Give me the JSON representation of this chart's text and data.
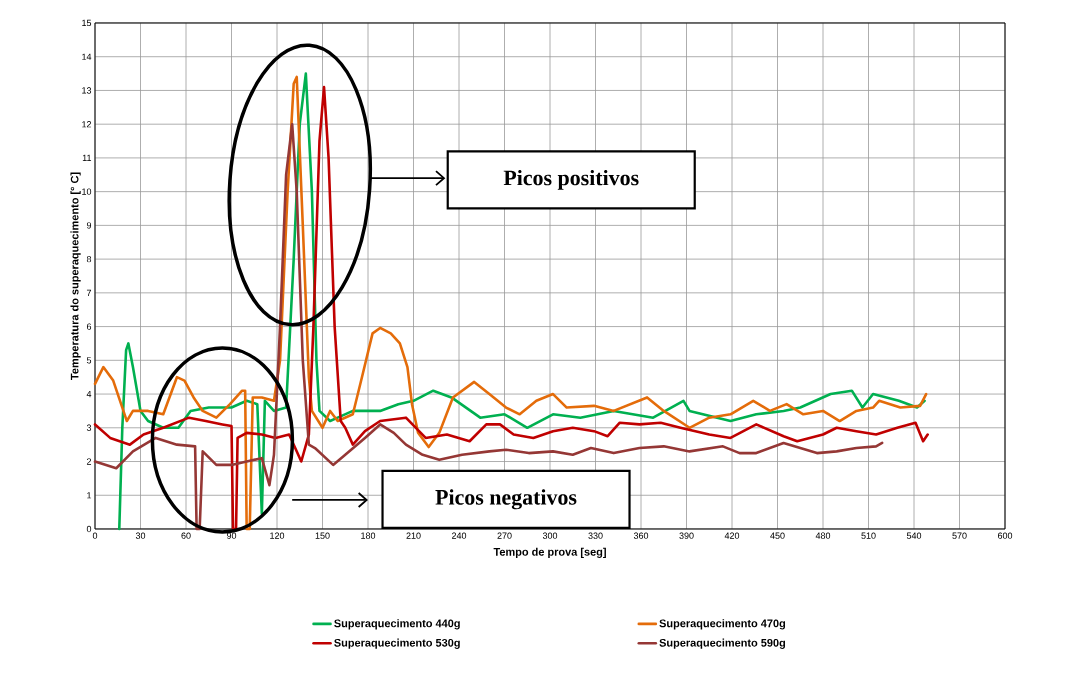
{
  "chart_data": {
    "type": "line",
    "xlabel": "Tempo de prova [seg]",
    "ylabel": "Temperatura do superaquecimento [° C]",
    "xlim": [
      0,
      600
    ],
    "xticks": [
      0,
      30,
      60,
      90,
      120,
      150,
      180,
      210,
      240,
      270,
      300,
      330,
      360,
      390,
      420,
      450,
      480,
      510,
      540,
      570,
      600
    ],
    "ylim": [
      0,
      15
    ],
    "yticks": [
      0,
      1,
      2,
      3,
      4,
      5,
      6,
      7,
      8,
      9,
      10,
      11,
      12,
      13,
      14,
      15
    ],
    "grid": true,
    "legend": "bottom",
    "marker": "none",
    "line_style": "solid",
    "annotations": [
      "Picos positivos",
      "Picos negativos"
    ],
    "series": [
      {
        "name": "Superaquecimento 440g",
        "color": "#00b050",
        "x": [
          16,
          18,
          20.5,
          22,
          25,
          30,
          35,
          45,
          55,
          63,
          75,
          90,
          100,
          107,
          110,
          112,
          118,
          126,
          131,
          135,
          139,
          143,
          146,
          148,
          155,
          160,
          170,
          180,
          188,
          200,
          210,
          223,
          235,
          254,
          270,
          285,
          302,
          320,
          342,
          368,
          388,
          392,
          419,
          436,
          454,
          465,
          485,
          499,
          506,
          513,
          530,
          542,
          547
        ],
        "values": [
          0,
          3,
          5.3,
          5.5,
          4.8,
          3.5,
          3.2,
          3.0,
          3.0,
          3.5,
          3.6,
          3.6,
          3.8,
          3.7,
          0.45,
          3.8,
          3.5,
          3.6,
          8,
          12,
          13.5,
          10,
          5,
          3.5,
          3.2,
          3.3,
          3.5,
          3.5,
          3.5,
          3.7,
          3.8,
          4.1,
          3.9,
          3.3,
          3.4,
          3.0,
          3.4,
          3.3,
          3.5,
          3.3,
          3.8,
          3.5,
          3.2,
          3.4,
          3.5,
          3.6,
          4.0,
          4.1,
          3.6,
          4.0,
          3.8,
          3.6,
          3.8
        ]
      },
      {
        "name": "Superaquecimento 470g",
        "color": "#e46c0a",
        "x": [
          0,
          5.5,
          12,
          21,
          25,
          35,
          45,
          54,
          59,
          65,
          71,
          80,
          89,
          97,
          99,
          100,
          102,
          104,
          110,
          118,
          122,
          127,
          131,
          133,
          137,
          141,
          143,
          150,
          155,
          160,
          170,
          176,
          183,
          188,
          195,
          201,
          206,
          209,
          213,
          220,
          227,
          236,
          250,
          260,
          271,
          280,
          291,
          302,
          311,
          329,
          342,
          364,
          375,
          392,
          405,
          419,
          434,
          445,
          456,
          467,
          480,
          491,
          502,
          513,
          517,
          531,
          544,
          548
        ],
        "values": [
          4.3,
          4.8,
          4.4,
          3.2,
          3.5,
          3.5,
          3.4,
          4.5,
          4.4,
          3.9,
          3.5,
          3.3,
          3.7,
          4.1,
          4.1,
          0,
          0,
          3.9,
          3.9,
          3.8,
          5,
          10,
          13.2,
          13.4,
          9,
          4.5,
          3.5,
          3.0,
          3.5,
          3.2,
          3.4,
          4.5,
          5.8,
          5.96,
          5.8,
          5.5,
          4.8,
          3.7,
          2.85,
          2.43,
          2.85,
          3.9,
          4.36,
          4.0,
          3.6,
          3.4,
          3.8,
          4.0,
          3.6,
          3.65,
          3.5,
          3.9,
          3.5,
          3.0,
          3.3,
          3.4,
          3.8,
          3.5,
          3.7,
          3.4,
          3.5,
          3.2,
          3.5,
          3.6,
          3.8,
          3.6,
          3.65,
          4.0
        ]
      },
      {
        "name": "Superaquecimento 530g",
        "color": "#c00000",
        "x": [
          0,
          10,
          23,
          32,
          45,
          62,
          73,
          84,
          90,
          91,
          93,
          94,
          100,
          110,
          119,
          128,
          136,
          141,
          144,
          148,
          151,
          154,
          158,
          162,
          165,
          170,
          178,
          188,
          205,
          218,
          232,
          247,
          258,
          267,
          276,
          289,
          302,
          315,
          329,
          338,
          346,
          359,
          373,
          386,
          405,
          419,
          436,
          454,
          463,
          480,
          489,
          502,
          515,
          529,
          541,
          546,
          549
        ],
        "values": [
          3.1,
          2.7,
          2.5,
          2.8,
          3.0,
          3.3,
          3.2,
          3.1,
          3.05,
          0,
          0,
          2.7,
          2.85,
          2.8,
          2.7,
          2.8,
          2.0,
          2.8,
          6,
          11.5,
          13.1,
          11,
          6,
          3.2,
          3.0,
          2.5,
          2.9,
          3.2,
          3.3,
          2.7,
          2.8,
          2.6,
          3.1,
          3.1,
          2.8,
          2.7,
          2.9,
          3.0,
          2.9,
          2.75,
          3.15,
          3.1,
          3.15,
          3.0,
          2.8,
          2.7,
          3.1,
          2.75,
          2.6,
          2.8,
          3.0,
          2.9,
          2.8,
          3.0,
          3.15,
          2.6,
          2.8
        ]
      },
      {
        "name": "Superaquecimento 590g",
        "color": "#953735",
        "x": [
          0,
          14,
          25,
          40,
          54,
          66,
          67,
          69,
          71,
          80,
          90,
          100,
          110,
          115,
          118,
          122,
          126,
          130,
          133,
          137,
          141,
          145,
          157,
          165,
          178,
          188,
          197,
          205,
          216,
          227,
          242,
          260,
          271,
          286,
          302,
          315,
          327,
          342,
          359,
          375,
          392,
          414,
          425,
          436,
          454,
          465,
          476,
          489,
          502,
          515,
          519
        ],
        "values": [
          2.0,
          1.8,
          2.3,
          2.7,
          2.5,
          2.45,
          0,
          0,
          2.3,
          1.9,
          1.9,
          2.0,
          2.1,
          1.3,
          2.2,
          6,
          10.5,
          12.0,
          10,
          5,
          2.5,
          2.4,
          1.9,
          2.2,
          2.7,
          3.1,
          2.85,
          2.5,
          2.2,
          2.05,
          2.2,
          2.3,
          2.35,
          2.25,
          2.3,
          2.2,
          2.4,
          2.25,
          2.4,
          2.45,
          2.3,
          2.45,
          2.25,
          2.25,
          2.55,
          2.4,
          2.25,
          2.3,
          2.4,
          2.45,
          2.55
        ]
      }
    ]
  }
}
